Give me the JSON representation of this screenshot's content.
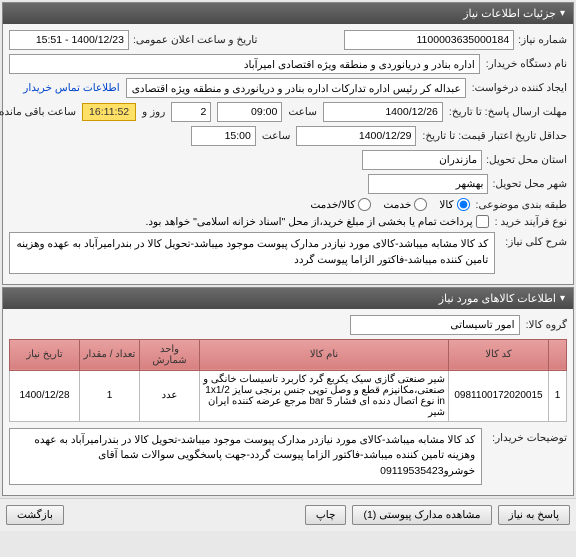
{
  "panel1": {
    "title": "جزئیات اطلاعات نیاز",
    "need_no_label": "شماره نیاز:",
    "need_no": "1100003635000184",
    "announce_label": "تاریخ و ساعت اعلان عمومی:",
    "announce_value": "1400/12/23 - 15:51",
    "buyer_label": "نام دستگاه خریدار:",
    "buyer_value": "اداره بنادر و دریانوردی و منطقه ویژه اقتصادی امیرآباد",
    "requester_label": "ایجاد کننده درخواست:",
    "requester_value": "عبداله کر رئیس اداره تدارکات اداره بنادر و دریانوردی و منطقه ویژه اقتصادی امیرآباد",
    "contact_link": "اطلاعات تماس خریدار",
    "response_deadline_label": "مهلت ارسال پاسخ: تا تاریخ:",
    "response_date": "1400/12/26",
    "time_label": "ساعت",
    "response_time": "09:00",
    "day_label": "روز و",
    "days": "2",
    "countdown": "16:11:52",
    "remaining_label": "ساعت باقی مانده",
    "validity_label": "حداقل تاریخ اعتبار قیمت: تا تاریخ:",
    "validity_date": "1400/12/29",
    "validity_time": "15:00",
    "delivery_province_label": "استان محل تحویل:",
    "delivery_province": "مازندران",
    "delivery_city_label": "شهر محل تحویل:",
    "delivery_city": "بهشهر",
    "category_label": "طبقه بندی موضوعی:",
    "category_options": {
      "goods": "کالا",
      "service": "خدمت",
      "goods_service": "کالا/خدمت"
    },
    "category_selected": "goods",
    "purchase_type_label": "نوع فرآیند خرید :",
    "purchase_partial": "پرداخت تمام یا بخشی از مبلغ خرید،از محل \"اسناد خزانه اسلامی\" خواهد بود.",
    "desc_label": "شرح کلی نیاز:",
    "desc_text": "کد کالا مشابه میباشد-کالای مورد نیازدر مدارک پیوست موجود میباشد-تحویل کالا در بندرامیرآباد به عهده وهزینه تامین کننده میباشد-فاکتور الزاما پیوست گردد"
  },
  "panel2": {
    "title": "اطلاعات کالاهای مورد نیاز",
    "group_label": "گروه کالا:",
    "group_value": "امور تاسیساتی",
    "headers": {
      "idx": "",
      "code": "کد کالا",
      "name": "نام کالا",
      "unit": "واحد شمارش",
      "qty": "تعداد / مقدار",
      "date": "تاریخ نیاز"
    },
    "rows": [
      {
        "idx": "1",
        "code": "0981100172020015",
        "name": "شیر صنعتی گازی سیک یکربع گرد کاربرد تاسیسات خانگی و صنعتی،مکانیزم قطع و وصل توپی جنس برنجی سایز 1x1/2 in نوع اتصال دنده ای فشار 5 bar مرجع عرضه کننده ایران شیر",
        "unit": "عدد",
        "qty": "1",
        "date": "1400/12/28"
      }
    ],
    "notes_label": "توضیحات خریدار:",
    "notes_text": "کد کالا مشابه میباشد-کالای مورد نیازدر مدارک پیوست موجود میباشد-تحویل کالا در بندرامیرآباد به عهده وهزینه تامین کننده میباشد-فاکتور الزاما پیوست گردد-جهت پاسخگویی سوالات شما آقای خوشرو09119535423"
  },
  "buttons": {
    "answer": "پاسخ به نیاز",
    "attachments": "مشاهده مدارک پیوستی (1)",
    "print": "چاپ",
    "back": "بازگشت"
  }
}
